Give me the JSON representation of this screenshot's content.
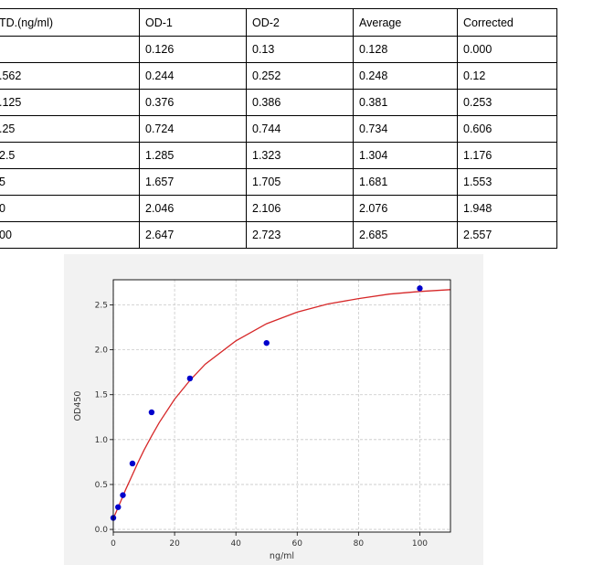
{
  "table": {
    "headers": [
      "TD.(ng/ml)",
      "OD-1",
      "OD-2",
      "Average",
      "Corrected"
    ],
    "rows": [
      [
        "",
        "0.126",
        "0.13",
        "0.128",
        "0.000"
      ],
      [
        ".562",
        "0.244",
        "0.252",
        "0.248",
        "0.12"
      ],
      [
        ".125",
        "0.376",
        "0.386",
        "0.381",
        "0.253"
      ],
      [
        ".25",
        "0.724",
        "0.744",
        "0.734",
        "0.606"
      ],
      [
        "2.5",
        "1.285",
        "1.323",
        "1.304",
        "1.176"
      ],
      [
        "5",
        "1.657",
        "1.705",
        "1.681",
        "1.553"
      ],
      [
        "0",
        "2.046",
        "2.106",
        "2.076",
        "1.948"
      ],
      [
        "00",
        "2.647",
        "2.723",
        "2.685",
        "2.557"
      ]
    ]
  },
  "chart_data": {
    "type": "scatter",
    "xlabel": "ng/ml",
    "ylabel": "OD450",
    "xlim": [
      0,
      110
    ],
    "ylim": [
      -0.03,
      2.78
    ],
    "xticks": [
      0,
      20,
      40,
      60,
      80,
      100
    ],
    "yticks": [
      0.0,
      0.5,
      1.0,
      1.5,
      2.0,
      2.5
    ],
    "xtick_labels": [
      "0",
      "20",
      "40",
      "60",
      "80",
      "100"
    ],
    "ytick_labels": [
      "0.0",
      "0.5",
      "1.0",
      "1.5",
      "2.0",
      "2.5"
    ],
    "grid": true,
    "series": [
      {
        "kind": "points",
        "color": "#0000cc",
        "x": [
          0,
          1.5625,
          3.125,
          6.25,
          12.5,
          25,
          50,
          100
        ],
        "y": [
          0.128,
          0.248,
          0.381,
          0.734,
          1.304,
          1.681,
          2.076,
          2.685
        ]
      },
      {
        "kind": "fit-curve",
        "color": "#d62728",
        "x": [
          0,
          0.5,
          1,
          2,
          3,
          4,
          6,
          8,
          10,
          12.5,
          15,
          20,
          25,
          30,
          40,
          50,
          60,
          70,
          80,
          90,
          100,
          110
        ],
        "y": [
          0.12,
          0.16,
          0.2,
          0.28,
          0.36,
          0.44,
          0.59,
          0.74,
          0.88,
          1.04,
          1.19,
          1.45,
          1.66,
          1.84,
          2.1,
          2.29,
          2.42,
          2.51,
          2.57,
          2.62,
          2.65,
          2.67
        ]
      }
    ]
  },
  "colors": {
    "panel_background": "#f2f2f2",
    "plot_background": "#ffffff",
    "grid": "#c8c8c8",
    "points": "#0000cc",
    "curve": "#d62728"
  }
}
